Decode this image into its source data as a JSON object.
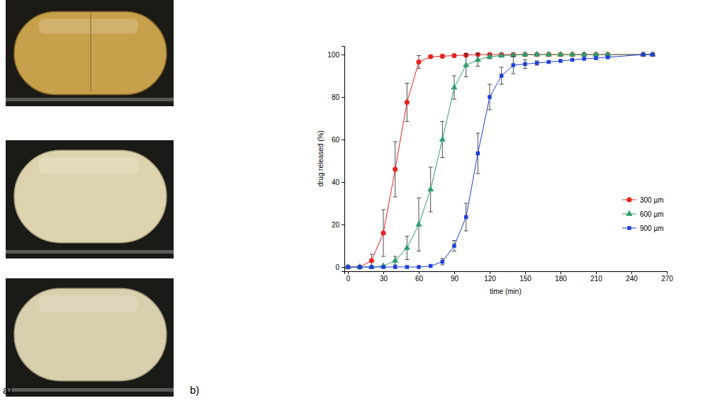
{
  "panel_labels": {
    "a": "a)",
    "b": "b)"
  },
  "chart_data": {
    "type": "line",
    "xlabel": "time (min)",
    "ylabel": "drug released (%)",
    "x": [
      0,
      10,
      20,
      30,
      40,
      50,
      60,
      70,
      80,
      90,
      100,
      110,
      120,
      130,
      140,
      150,
      160,
      170,
      180,
      190,
      200,
      210,
      220,
      250,
      258
    ],
    "xlim": [
      -3,
      270
    ],
    "xticks": [
      0,
      30,
      60,
      90,
      120,
      150,
      180,
      210,
      240,
      270
    ],
    "ylim": [
      -2,
      104
    ],
    "yticks": [
      0,
      20,
      40,
      60,
      80,
      100
    ],
    "legend": "right",
    "series": [
      {
        "name": "300 µm",
        "color": "#e8231f",
        "marker": "circle",
        "values": [
          0,
          0,
          3,
          16,
          46,
          77.5,
          96.5,
          99,
          99.2,
          99.5,
          99.7,
          100,
          100,
          100,
          100,
          100,
          100,
          100,
          100,
          100,
          100,
          100,
          100,
          100,
          100
        ],
        "errors": [
          null,
          null,
          3,
          11,
          13,
          9,
          3,
          0.5,
          null,
          null,
          null,
          null,
          null,
          null,
          null,
          null,
          null,
          null,
          null,
          null,
          null,
          null,
          null,
          null,
          null
        ]
      },
      {
        "name": "600 µm",
        "color": "#2e9e6b",
        "marker": "triangle",
        "values": [
          0,
          0,
          0,
          0.5,
          3,
          9,
          20,
          36.5,
          60,
          84.5,
          95,
          97.5,
          99,
          99.5,
          99.7,
          100,
          100,
          100,
          100,
          100,
          100,
          100,
          100,
          100,
          100
        ],
        "errors": [
          null,
          null,
          null,
          null,
          2,
          5.5,
          12.5,
          10.5,
          8.5,
          5.5,
          5.5,
          3,
          1,
          null,
          null,
          null,
          null,
          null,
          null,
          null,
          null,
          null,
          null,
          null,
          null
        ]
      },
      {
        "name": "900 µm",
        "color": "#1f3fd6",
        "marker": "square",
        "values": [
          0,
          0,
          0,
          0,
          0,
          0,
          0,
          0.5,
          2.5,
          10,
          23.5,
          53.5,
          80,
          90,
          95,
          95.5,
          96,
          96.5,
          97,
          97.5,
          98,
          98.3,
          98.7,
          100,
          100
        ],
        "errors": [
          null,
          null,
          null,
          null,
          null,
          null,
          null,
          null,
          1.5,
          2.5,
          6.5,
          9.5,
          6,
          4,
          4,
          2,
          1,
          null,
          null,
          null,
          null,
          null,
          null,
          null,
          null
        ]
      }
    ]
  }
}
